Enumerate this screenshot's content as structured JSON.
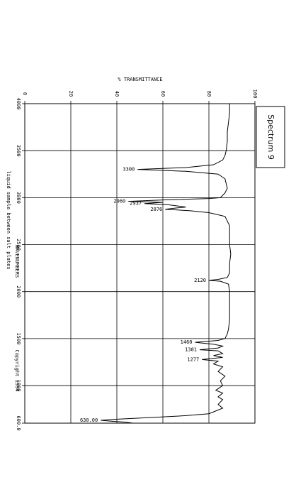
{
  "chart_data": {
    "type": "line",
    "title": "Spectrum 9",
    "ylabel": "% TRANSMITTANCE",
    "xlabel": "WAVENUMBERS",
    "sample_note": "liquid sample between salt plates",
    "copyright": "Copyright 1994",
    "color": "#000000",
    "xlim": [
      4000,
      600
    ],
    "xticks": [
      4000,
      3500,
      3000,
      2500,
      2000,
      1500,
      1000,
      {
        "value": 600,
        "label": "600.0"
      }
    ],
    "ylim": [
      0,
      100
    ],
    "yticks": [
      0,
      20,
      40,
      60,
      80,
      100
    ],
    "grid": true,
    "x": [
      4000,
      3900,
      3800,
      3700,
      3600,
      3500,
      3450,
      3400,
      3350,
      3320,
      3300,
      3280,
      3250,
      3200,
      3100,
      3050,
      3000,
      2990,
      2975,
      2960,
      2950,
      2937,
      2925,
      2900,
      2890,
      2876,
      2860,
      2840,
      2800,
      2700,
      2600,
      2500,
      2400,
      2300,
      2200,
      2150,
      2130,
      2120,
      2110,
      2080,
      2000,
      1900,
      1800,
      1700,
      1600,
      1550,
      1500,
      1480,
      1460,
      1440,
      1420,
      1400,
      1381,
      1370,
      1340,
      1320,
      1300,
      1277,
      1260,
      1230,
      1200,
      1150,
      1100,
      1050,
      1000,
      950,
      920,
      880,
      850,
      800,
      760,
      720,
      700,
      680,
      660,
      640,
      630,
      620,
      610,
      600
    ],
    "values": [
      89,
      89,
      88.5,
      88,
      88,
      87.5,
      87,
      86,
      82,
      70,
      49,
      70,
      84,
      87,
      88,
      87,
      85,
      80,
      60,
      45,
      60,
      52,
      62,
      70,
      66,
      61,
      72,
      80,
      87,
      89,
      89,
      89,
      89.5,
      89,
      89,
      88,
      84,
      80,
      85,
      88.5,
      89,
      89,
      89,
      89,
      88.5,
      88,
      87,
      84,
      74,
      82,
      86,
      84,
      76,
      84,
      86,
      82,
      86,
      77,
      84,
      82,
      86,
      84,
      87,
      85,
      86,
      83,
      86,
      84,
      86,
      84,
      86,
      82,
      80,
      70,
      55,
      38,
      33,
      38,
      44,
      47
    ],
    "annotations": [
      {
        "text": "3300",
        "x": 3300
      },
      {
        "text": "2960",
        "x": 2960
      },
      {
        "text": "2937",
        "x": 2937
      },
      {
        "text": "2876",
        "x": 2876
      },
      {
        "text": "2120",
        "x": 2120
      },
      {
        "text": "1460",
        "x": 1460
      },
      {
        "text": "1381",
        "x": 1381
      },
      {
        "text": "1277",
        "x": 1277
      },
      {
        "text": "630.00",
        "x": 630
      }
    ]
  }
}
